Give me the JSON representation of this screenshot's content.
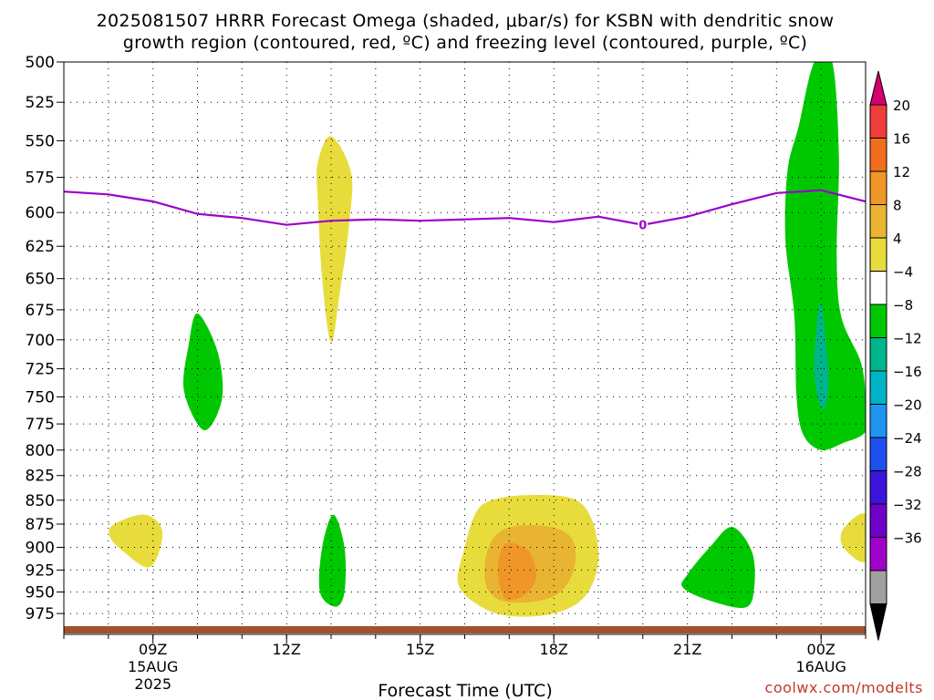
{
  "title": {
    "line1": "2025081507 HRRR Forecast Omega (shaded, μbar/s) for KSBN with dendritic snow",
    "line2": "growth region (contoured, red, ºC) and freezing level (contoured, purple, ºC)"
  },
  "xlabel": "Forecast Time (UTC)",
  "credit": "coolwx.com/modelts",
  "colors": {
    "freezing_line": "#9b00c9",
    "ground": "#a0522d",
    "grid": "#000000"
  },
  "chart_data": {
    "type": "heatmap",
    "y_axis": {
      "ticks": [
        500,
        525,
        550,
        575,
        600,
        625,
        650,
        675,
        700,
        725,
        750,
        775,
        800,
        825,
        850,
        875,
        900,
        925,
        950,
        975
      ],
      "range": [
        500,
        1000
      ],
      "scale": "log-pressure"
    },
    "x_axis": {
      "ticks": [
        {
          "hour": 9,
          "label": "09Z",
          "sub1": "15AUG",
          "sub2": "2025"
        },
        {
          "hour": 12,
          "label": "12Z",
          "sub1": "",
          "sub2": ""
        },
        {
          "hour": 15,
          "label": "15Z",
          "sub1": "",
          "sub2": ""
        },
        {
          "hour": 18,
          "label": "18Z",
          "sub1": "",
          "sub2": ""
        },
        {
          "hour": 21,
          "label": "21Z",
          "sub1": "",
          "sub2": ""
        },
        {
          "hour": 24,
          "label": "00Z",
          "sub1": "16AUG",
          "sub2": ""
        }
      ],
      "range": [
        7,
        25
      ]
    },
    "grid": true,
    "colorbar": {
      "labels": [
        "20",
        "16",
        "12",
        "8",
        "4",
        "−4",
        "−8",
        "−12",
        "−16",
        "−20",
        "−24",
        "−28",
        "−32",
        "−36"
      ],
      "colors": [
        "#d4006f",
        "#f03c3c",
        "#f06e1e",
        "#f09628",
        "#e8b432",
        "#e8dc3c",
        "#ffffff",
        "#00c800",
        "#00b48c",
        "#00b4c8",
        "#1e96f0",
        "#1e50f0",
        "#3c14dc",
        "#6e00c8",
        "#a000c8",
        "#a0a0a0",
        "#000000"
      ]
    },
    "freezing_level": {
      "label": "0",
      "points": [
        [
          7,
          585
        ],
        [
          8,
          587
        ],
        [
          9,
          592
        ],
        [
          10,
          601
        ],
        [
          11,
          604
        ],
        [
          12,
          609
        ],
        [
          13,
          606
        ],
        [
          14,
          605
        ],
        [
          15,
          606
        ],
        [
          16,
          605
        ],
        [
          17,
          604
        ],
        [
          18,
          607
        ],
        [
          19,
          603
        ],
        [
          20,
          609
        ],
        [
          21,
          603
        ],
        [
          22,
          594
        ],
        [
          23,
          586
        ],
        [
          24,
          584
        ],
        [
          25,
          592
        ]
      ]
    },
    "omega_regions": [
      {
        "value": 4,
        "color": "#e8dc3c",
        "points": [
          [
            13.0,
            547
          ],
          [
            13.45,
            572
          ],
          [
            13.4,
            610
          ],
          [
            13.2,
            660
          ],
          [
            13.0,
            702
          ],
          [
            12.8,
            650
          ],
          [
            12.7,
            590
          ],
          [
            12.7,
            565
          ]
        ]
      },
      {
        "value": -4,
        "color": "#00c800",
        "points": [
          [
            10.0,
            678
          ],
          [
            10.45,
            710
          ],
          [
            10.55,
            752
          ],
          [
            10.15,
            781
          ],
          [
            9.7,
            745
          ],
          [
            9.8,
            705
          ]
        ]
      },
      {
        "value": 4,
        "color": "#e8dc3c",
        "points": [
          [
            8.1,
            876
          ],
          [
            8.8,
            865
          ],
          [
            9.2,
            880
          ],
          [
            9.1,
            910
          ],
          [
            8.85,
            922
          ],
          [
            8.35,
            905
          ],
          [
            8.05,
            890
          ]
        ]
      },
      {
        "value": -4,
        "color": "#00c800",
        "points": [
          [
            13.05,
            865
          ],
          [
            13.3,
            900
          ],
          [
            13.3,
            950
          ],
          [
            13.1,
            967
          ],
          [
            12.75,
            950
          ],
          [
            12.8,
            900
          ]
        ]
      },
      {
        "value": 4,
        "color": "#e8dc3c",
        "points": [
          [
            16.5,
            852
          ],
          [
            17.3,
            845
          ],
          [
            18.4,
            848
          ],
          [
            18.85,
            870
          ],
          [
            19.0,
            915
          ],
          [
            18.7,
            955
          ],
          [
            18.0,
            975
          ],
          [
            17.0,
            978
          ],
          [
            16.3,
            965
          ],
          [
            15.85,
            940
          ],
          [
            16.0,
            900
          ],
          [
            16.2,
            868
          ]
        ]
      },
      {
        "value": 8,
        "color": "#e8b432",
        "points": [
          [
            16.9,
            880
          ],
          [
            17.8,
            877
          ],
          [
            18.4,
            890
          ],
          [
            18.45,
            925
          ],
          [
            18.0,
            955
          ],
          [
            17.0,
            962
          ],
          [
            16.5,
            945
          ],
          [
            16.5,
            905
          ]
        ]
      },
      {
        "value": 12,
        "color": "#f09628",
        "points": [
          [
            17.0,
            895
          ],
          [
            17.45,
            905
          ],
          [
            17.6,
            935
          ],
          [
            17.3,
            955
          ],
          [
            16.9,
            957
          ],
          [
            16.75,
            930
          ],
          [
            16.8,
            905
          ]
        ]
      },
      {
        "value": -4,
        "color": "#00c800",
        "points": [
          [
            22.0,
            878
          ],
          [
            22.45,
            905
          ],
          [
            22.5,
            945
          ],
          [
            22.3,
            968
          ],
          [
            21.5,
            960
          ],
          [
            20.9,
            945
          ],
          [
            21.0,
            930
          ],
          [
            21.5,
            900
          ]
        ]
      },
      {
        "value": 4,
        "color": "#e8dc3c",
        "points": [
          [
            25.0,
            865
          ],
          [
            25.0,
            915
          ],
          [
            24.5,
            900
          ],
          [
            24.5,
            880
          ]
        ]
      },
      {
        "value": -4,
        "color": "#00c800",
        "points": [
          [
            23.85,
            500
          ],
          [
            24.25,
            500
          ],
          [
            24.4,
            560
          ],
          [
            24.35,
            630
          ],
          [
            24.45,
            680
          ],
          [
            24.9,
            720
          ],
          [
            25.0,
            755
          ],
          [
            25.0,
            782
          ],
          [
            24.5,
            793
          ],
          [
            24.0,
            800
          ],
          [
            23.6,
            785
          ],
          [
            23.45,
            750
          ],
          [
            23.4,
            680
          ],
          [
            23.2,
            620
          ],
          [
            23.25,
            570
          ],
          [
            23.5,
            540
          ]
        ]
      },
      {
        "value": -8,
        "color": "#00b48c",
        "points": [
          [
            24.0,
            670
          ],
          [
            24.15,
            720
          ],
          [
            24.15,
            750
          ],
          [
            24.0,
            760
          ],
          [
            23.85,
            730
          ],
          [
            23.9,
            690
          ]
        ]
      }
    ]
  }
}
